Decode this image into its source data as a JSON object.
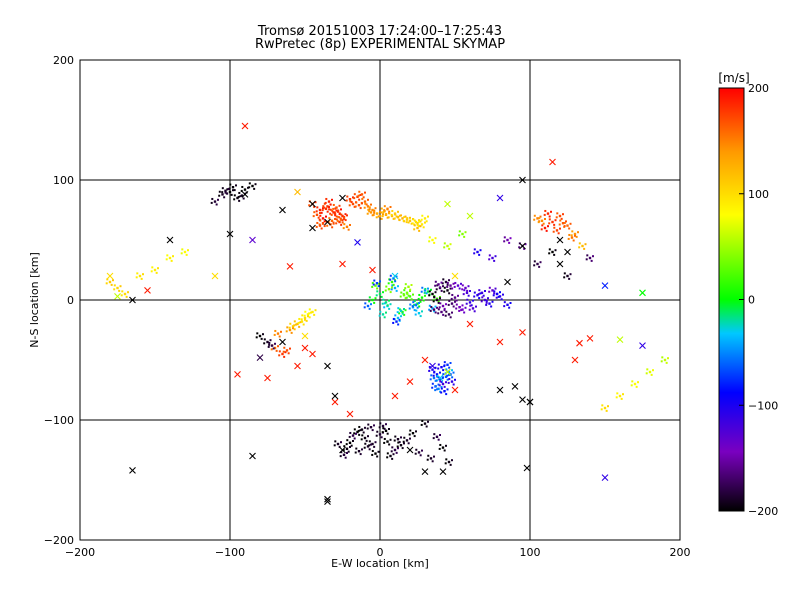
{
  "chart_data": {
    "type": "scatter",
    "title": "Tromsø 20151003 17:24:00–17:25:43",
    "subtitle": "RwPretec (8p) EXPERIMENTAL SKYMAP",
    "xlabel": "E-W location [km]",
    "ylabel": "N-S location [km]",
    "xlim": [
      -200,
      200
    ],
    "ylim": [
      -200,
      200
    ],
    "xticks": [
      -200,
      -100,
      0,
      100,
      200
    ],
    "yticks": [
      -200,
      -100,
      0,
      100,
      200
    ],
    "grid_lines_x": [
      -100,
      0,
      100
    ],
    "grid_lines_y": [
      -100,
      0,
      100
    ],
    "colorbar": {
      "label": "[m/s]",
      "min": -200,
      "max": 200,
      "ticks": [
        200,
        100,
        0,
        -100,
        -200
      ],
      "colors": [
        "#000000",
        "#7a00c0",
        "#0000ff",
        "#00c8ff",
        "#00ff00",
        "#ffff00",
        "#ff9900",
        "#ff0000"
      ]
    },
    "marker_types": [
      "dot",
      "cross"
    ],
    "series": [
      {
        "x": [
          -40,
          -35,
          -30,
          -25,
          -45,
          -38,
          -32,
          -28,
          -42,
          -36,
          -33,
          -27,
          -40,
          -34,
          -29,
          -24,
          -38,
          -31,
          -26,
          -22,
          -20,
          -18,
          -15,
          -12,
          -10,
          -8,
          -5,
          -2,
          0,
          3,
          5,
          8,
          10,
          15,
          20,
          25,
          30,
          -14,
          -6,
          4,
          12,
          18,
          24,
          28
        ],
        "y": [
          75,
          78,
          72,
          70,
          80,
          68,
          66,
          74,
          71,
          76,
          63,
          65,
          62,
          82,
          77,
          69,
          64,
          73,
          67,
          61,
          84,
          80,
          86,
          88,
          82,
          78,
          75,
          72,
          70,
          74,
          76,
          70,
          72,
          68,
          66,
          64,
          68,
          79,
          73,
          71,
          69,
          67,
          65,
          63
        ],
        "v": [
          190,
          180,
          170,
          185,
          175,
          195,
          160,
          188,
          170,
          182,
          165,
          178,
          172,
          186,
          168,
          176,
          170,
          184,
          162,
          150,
          180,
          170,
          175,
          165,
          160,
          150,
          145,
          140,
          130,
          135,
          150,
          120,
          110,
          125,
          115,
          105,
          90,
          168,
          142,
          128,
          118,
          108,
          98,
          92
        ]
      },
      {
        "x": [
          -5,
          0,
          5,
          10,
          15,
          20,
          25,
          30,
          -3,
          2,
          8,
          12,
          18,
          22,
          28,
          4,
          6,
          14,
          16,
          24,
          -8,
          -2,
          9,
          11,
          19,
          26,
          32,
          35,
          38
        ],
        "y": [
          0,
          5,
          -5,
          10,
          -10,
          3,
          -3,
          8,
          12,
          -12,
          15,
          -15,
          6,
          -6,
          2,
          -2,
          9,
          -9,
          4,
          -4,
          -5,
          14,
          18,
          -18,
          11,
          -11,
          7,
          -7,
          1
        ],
        "v": [
          0,
          -10,
          -30,
          -40,
          10,
          20,
          -5,
          -50,
          30,
          -20,
          15,
          -35,
          25,
          -45,
          5,
          -15,
          40,
          -25,
          35,
          -55,
          -60,
          -70,
          -65,
          -80,
          50,
          -30,
          -10,
          -40,
          20
        ]
      },
      {
        "x": [
          35,
          38,
          40,
          42,
          45,
          48,
          50,
          52,
          55,
          58,
          60,
          65,
          70,
          75,
          80,
          85,
          44,
          46,
          41,
          47,
          53,
          57,
          62,
          68,
          73,
          78,
          36,
          39
        ],
        "y": [
          5,
          0,
          10,
          -5,
          8,
          -3,
          2,
          12,
          -8,
          6,
          -2,
          4,
          0,
          8,
          3,
          -4,
          15,
          -12,
          -10,
          12,
          -6,
          10,
          -7,
          6,
          -3,
          5,
          -8,
          13
        ],
        "v": [
          -200,
          -190,
          -180,
          -150,
          -195,
          -170,
          -160,
          -130,
          -140,
          -120,
          -110,
          -100,
          -120,
          -130,
          -110,
          -100,
          -185,
          -175,
          -165,
          -155,
          -145,
          -135,
          -125,
          -115,
          -105,
          -95,
          -170,
          -160
        ]
      },
      {
        "x": [
          -15,
          -10,
          -5,
          0,
          5,
          10,
          -12,
          -8,
          -3,
          2,
          7,
          12,
          -18,
          -20,
          -22,
          -14,
          -6,
          4,
          14,
          18,
          22,
          26,
          30,
          34,
          38,
          42,
          46,
          -28,
          -24
        ],
        "y": [
          -110,
          -115,
          -120,
          -112,
          -118,
          -125,
          -108,
          -122,
          -128,
          -105,
          -130,
          -116,
          -113,
          -119,
          -124,
          -126,
          -106,
          -109,
          -121,
          -117,
          -111,
          -127,
          -103,
          -132,
          -114,
          -123,
          -135,
          -120,
          -129
        ],
        "v": [
          -200,
          -195,
          -190,
          -185,
          -200,
          -180,
          -195,
          -190,
          -200,
          -185,
          -195,
          -190,
          -180,
          -200,
          -195,
          -190,
          -185,
          -200,
          -195,
          -190,
          -200,
          -185,
          -195,
          -190,
          -180,
          -200,
          -195,
          -190,
          -185
        ]
      },
      {
        "x": [
          35,
          38,
          40,
          42,
          44,
          46,
          48,
          37,
          39,
          41,
          43,
          45,
          47,
          36
        ],
        "y": [
          -58,
          -62,
          -66,
          -70,
          -64,
          -60,
          -68,
          -72,
          -74,
          -56,
          -76,
          -54,
          -62,
          -65
        ],
        "v": [
          -100,
          -90,
          -80,
          -120,
          -60,
          -40,
          -110,
          -70,
          -50,
          -95,
          -85,
          -75,
          -65,
          -55
        ]
      },
      {
        "x": [
          -80,
          -75,
          -70,
          -65,
          -60,
          -55,
          -50,
          -45,
          -72,
          -68,
          -62,
          -58,
          -52,
          -48
        ],
        "y": [
          -30,
          -35,
          -40,
          -45,
          -25,
          -20,
          -15,
          -10,
          -38,
          -28,
          -42,
          -22,
          -18,
          -12
        ],
        "v": [
          -200,
          -190,
          160,
          180,
          140,
          120,
          100,
          90,
          -180,
          150,
          170,
          110,
          95,
          85
        ]
      },
      {
        "x": [
          -100,
          -95,
          -90,
          -105,
          -110,
          -85,
          -98,
          -92,
          -103
        ],
        "y": [
          90,
          85,
          92,
          88,
          82,
          95,
          94,
          87,
          91
        ],
        "v": [
          -200,
          -195,
          -200,
          -190,
          -185,
          -200,
          -198,
          -192,
          -188
        ]
      },
      {
        "x": [
          110,
          115,
          120,
          125,
          130,
          105,
          135,
          112,
          118,
          122,
          128,
          108
        ],
        "y": [
          60,
          65,
          70,
          62,
          55,
          68,
          45,
          72,
          58,
          64,
          52,
          66
        ],
        "v": [
          190,
          180,
          170,
          160,
          140,
          150,
          120,
          185,
          175,
          165,
          155,
          145
        ]
      },
      {
        "x": [
          25,
          35,
          45,
          55,
          65,
          75,
          85,
          95,
          105,
          115,
          125,
          140
        ],
        "y": [
          60,
          50,
          45,
          55,
          40,
          35,
          50,
          45,
          30,
          40,
          20,
          35
        ],
        "v": [
          120,
          80,
          60,
          40,
          -100,
          -120,
          -150,
          -160,
          -180,
          -200,
          -190,
          -170
        ]
      },
      {
        "x": [
          150,
          160,
          170,
          180,
          190,
          -180,
          -175,
          -170,
          -160,
          -150,
          -140,
          -130
        ],
        "y": [
          -90,
          -80,
          -70,
          -60,
          -50,
          15,
          10,
          5,
          20,
          25,
          35,
          40
        ],
        "v": [
          100,
          90,
          80,
          70,
          60,
          110,
          105,
          100,
          95,
          90,
          85,
          80
        ]
      }
    ],
    "crosses": [
      {
        "x": -90,
        "y": 145,
        "v": 190
      },
      {
        "x": -50,
        "y": -40,
        "v": 190
      },
      {
        "x": -95,
        "y": -62,
        "v": 190
      },
      {
        "x": -100,
        "y": 55,
        "v": -200
      },
      {
        "x": -90,
        "y": 88,
        "v": -200
      },
      {
        "x": -80,
        "y": -48,
        "v": -180
      },
      {
        "x": -165,
        "y": -142,
        "v": -200
      },
      {
        "x": -140,
        "y": 50,
        "v": -200
      },
      {
        "x": -85,
        "y": 50,
        "v": -130
      },
      {
        "x": -85,
        "y": -130,
        "v": -200
      },
      {
        "x": -165,
        "y": 0,
        "v": -200
      },
      {
        "x": -35,
        "y": -166,
        "v": -200
      },
      {
        "x": -35,
        "y": -168,
        "v": -200
      },
      {
        "x": -25,
        "y": 85,
        "v": -200
      },
      {
        "x": -65,
        "y": 75,
        "v": -200
      },
      {
        "x": -45,
        "y": 60,
        "v": -200
      },
      {
        "x": -50,
        "y": -30,
        "v": 100
      },
      {
        "x": -180,
        "y": 20,
        "v": 100
      },
      {
        "x": -175,
        "y": 3,
        "v": 60
      },
      {
        "x": -155,
        "y": 8,
        "v": 190
      },
      {
        "x": -110,
        "y": 20,
        "v": 100
      },
      {
        "x": -30,
        "y": -85,
        "v": 190
      },
      {
        "x": -25,
        "y": -125,
        "v": -200
      },
      {
        "x": 20,
        "y": -125,
        "v": -200
      },
      {
        "x": 30,
        "y": -143,
        "v": -200
      },
      {
        "x": 42,
        "y": -143,
        "v": -200
      },
      {
        "x": 98,
        "y": -140,
        "v": -200
      },
      {
        "x": 95,
        "y": -83,
        "v": -200
      },
      {
        "x": 80,
        "y": -75,
        "v": -200
      },
      {
        "x": 90,
        "y": -72,
        "v": -200
      },
      {
        "x": 100,
        "y": -85,
        "v": -200
      },
      {
        "x": 10,
        "y": -80,
        "v": 190
      },
      {
        "x": 20,
        "y": -68,
        "v": 190
      },
      {
        "x": 30,
        "y": -50,
        "v": 190
      },
      {
        "x": 60,
        "y": -20,
        "v": 190
      },
      {
        "x": 80,
        "y": -35,
        "v": 190
      },
      {
        "x": 95,
        "y": -27,
        "v": 190
      },
      {
        "x": 160,
        "y": -33,
        "v": 60
      },
      {
        "x": 175,
        "y": -38,
        "v": -110
      },
      {
        "x": 150,
        "y": -148,
        "v": -110
      },
      {
        "x": 150,
        "y": 12,
        "v": -80
      },
      {
        "x": 175,
        "y": 6,
        "v": 0
      },
      {
        "x": 95,
        "y": 45,
        "v": -200
      },
      {
        "x": 120,
        "y": 30,
        "v": -200
      },
      {
        "x": 125,
        "y": 40,
        "v": -200
      },
      {
        "x": 115,
        "y": 115,
        "v": 190
      },
      {
        "x": 95,
        "y": 100,
        "v": -200
      },
      {
        "x": 80,
        "y": 85,
        "v": -110
      },
      {
        "x": 60,
        "y": 70,
        "v": 60
      },
      {
        "x": 45,
        "y": 80,
        "v": 60
      },
      {
        "x": -15,
        "y": 48,
        "v": -100
      },
      {
        "x": -25,
        "y": 30,
        "v": 190
      },
      {
        "x": -60,
        "y": 28,
        "v": 190
      },
      {
        "x": -5,
        "y": 25,
        "v": 190
      },
      {
        "x": 10,
        "y": 20,
        "v": -30
      },
      {
        "x": 50,
        "y": 20,
        "v": 100
      },
      {
        "x": 85,
        "y": 15,
        "v": -200
      },
      {
        "x": 120,
        "y": 50,
        "v": -200
      },
      {
        "x": -35,
        "y": -55,
        "v": -200
      },
      {
        "x": -65,
        "y": -35,
        "v": -200
      },
      {
        "x": -45,
        "y": -45,
        "v": 190
      },
      {
        "x": -55,
        "y": -55,
        "v": 190
      },
      {
        "x": -75,
        "y": -65,
        "v": 190
      },
      {
        "x": -20,
        "y": -95,
        "v": 190
      },
      {
        "x": 50,
        "y": -75,
        "v": 190
      },
      {
        "x": 35,
        "y": -55,
        "v": -110
      },
      {
        "x": 40,
        "y": -65,
        "v": -30
      },
      {
        "x": 45,
        "y": -60,
        "v": 60
      },
      {
        "x": 130,
        "y": -50,
        "v": 190
      },
      {
        "x": 133,
        "y": -36,
        "v": 190
      },
      {
        "x": 140,
        "y": -32,
        "v": 190
      },
      {
        "x": -45,
        "y": 80,
        "v": -200
      },
      {
        "x": -35,
        "y": 65,
        "v": -200
      },
      {
        "x": -55,
        "y": 90,
        "v": 120
      },
      {
        "x": -30,
        "y": -80,
        "v": -200
      },
      {
        "x": 100,
        "y": -85,
        "v": -200
      }
    ]
  }
}
